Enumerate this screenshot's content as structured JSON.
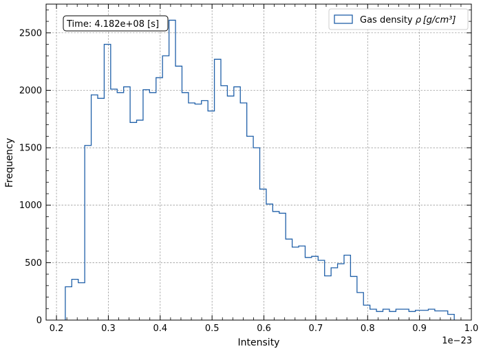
{
  "chart_data": {
    "type": "histogram",
    "xlabel": "Intensity",
    "ylabel": "Frequency",
    "x_offset_text": "1e−23",
    "annotation": "Time: 4.182e+08 [s]",
    "legend": {
      "label_prefix": "Gas density ",
      "label_math": "ρ [g/cm³]",
      "placement": "upper right"
    },
    "xlim": [
      0.18,
      1.0
    ],
    "ylim": [
      0,
      2750
    ],
    "x_ticks": [
      0.2,
      0.3,
      0.4,
      0.5,
      0.6,
      0.7,
      0.8,
      0.9,
      1.0
    ],
    "x_tick_labels": [
      "0.2",
      "0.3",
      "0.4",
      "0.5",
      "0.6",
      "0.7",
      "0.8",
      "0.9",
      "1.0"
    ],
    "y_ticks": [
      0,
      500,
      1000,
      1500,
      2000,
      2500
    ],
    "y_tick_labels": [
      "0",
      "500",
      "1000",
      "1500",
      "2000",
      "2500"
    ],
    "grid": true,
    "color": "#1f5fa8",
    "bin_start": 0.217,
    "bin_end": 0.967,
    "counts": [
      290,
      355,
      325,
      1520,
      1960,
      1930,
      2400,
      2010,
      1980,
      2030,
      1720,
      1740,
      2005,
      1980,
      2110,
      2300,
      2610,
      2210,
      1980,
      1890,
      1880,
      1910,
      1820,
      2270,
      2040,
      1950,
      2030,
      1890,
      1600,
      1500,
      1140,
      1010,
      945,
      930,
      705,
      635,
      645,
      545,
      555,
      520,
      385,
      455,
      490,
      565,
      380,
      240,
      130,
      95,
      75,
      95,
      75,
      95,
      95,
      75,
      85,
      85,
      95,
      80,
      80,
      50
    ]
  }
}
